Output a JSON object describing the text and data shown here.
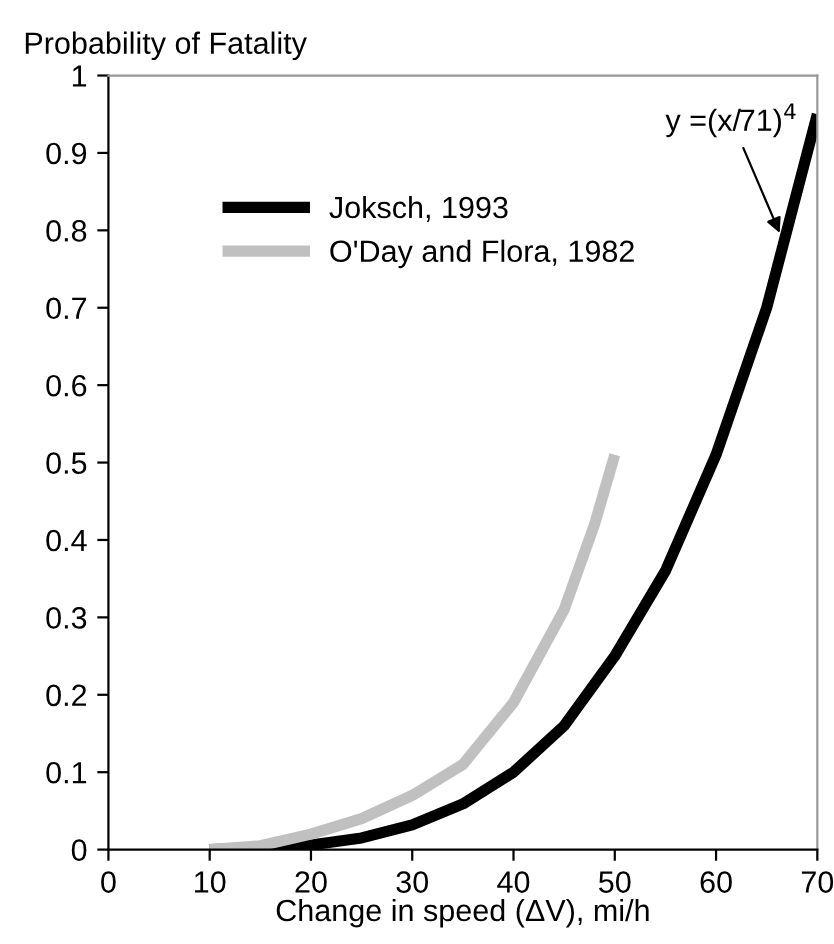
{
  "chart_data": {
    "type": "line",
    "ylabel": "Probability of Fatality",
    "xlabel": "Change in speed (ΔV), mi/h",
    "xlim": [
      0,
      70
    ],
    "xticks": [
      0,
      10,
      20,
      30,
      40,
      50,
      60,
      70
    ],
    "ylim": [
      0,
      1
    ],
    "yticks": [
      0,
      0.1,
      0.2,
      0.3,
      0.4,
      0.5,
      0.6,
      0.7,
      0.8,
      0.9,
      1
    ],
    "grid": false,
    "legend": "top left",
    "line_style": "solid",
    "marker": "none",
    "series": [
      {
        "name": "Joksch, 1993",
        "color": "#000000",
        "x": [
          10,
          15,
          20,
          25,
          30,
          35,
          40,
          45,
          50,
          55,
          60,
          65,
          70
        ],
        "values": [
          0,
          0.002,
          0.006,
          0.015,
          0.032,
          0.059,
          0.1,
          0.16,
          0.25,
          0.36,
          0.51,
          0.7,
          0.95
        ]
      },
      {
        "name": "O'Day and Flora, 1982",
        "color": "#c0c0c0",
        "x": [
          10,
          15,
          20,
          25,
          30,
          35,
          40,
          45,
          48,
          50
        ],
        "values": [
          0,
          0.005,
          0.02,
          0.04,
          0.07,
          0.11,
          0.19,
          0.31,
          0.42,
          0.51
        ]
      }
    ],
    "annotations": [
      {
        "text": "y =(x/71)$^{4}$",
        "x": 66.5,
        "y": 0.79
      }
    ]
  }
}
